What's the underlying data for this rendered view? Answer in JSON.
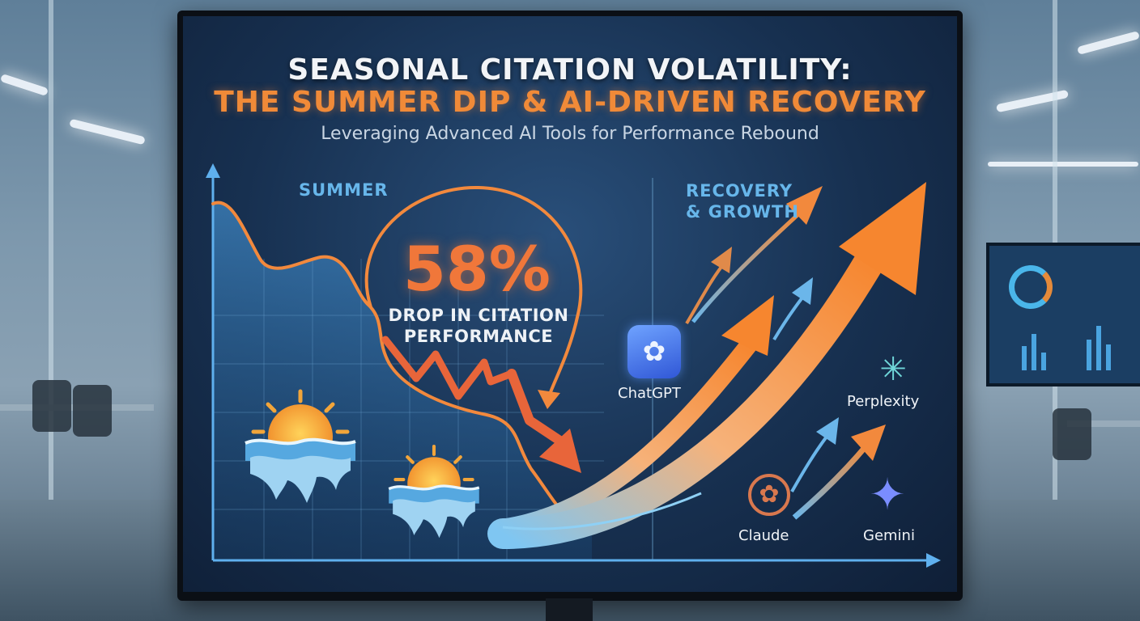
{
  "slide": {
    "title_line1": "SEASONAL CITATION VOLATILITY:",
    "title_line2": "THE SUMMER DIP & AI-DRIVEN RECOVERY",
    "subtitle": "Leveraging Advanced AI Tools for Performance Rebound",
    "label_summer": "SUMMER",
    "label_recovery_line1": "RECOVERY",
    "label_recovery_line2": "& GROWTH",
    "stat_value": "58%",
    "stat_line1": "DROP IN CITATION",
    "stat_line2": "PERFORMANCE"
  },
  "tools": {
    "chatgpt": "ChatGPT",
    "perplexity": "Perplexity",
    "claude": "Claude",
    "gemini": "Gemini"
  },
  "icons": {
    "sun": "sun-icon",
    "chatgpt": "chatgpt-logo-icon",
    "perplexity": "perplexity-logo-icon",
    "claude": "claude-logo-icon",
    "gemini": "gemini-star-icon"
  },
  "colors": {
    "title_white": "#f2f4f7",
    "title_orange": "#f08a38",
    "accent_blue": "#67b6ea",
    "stat_orange": "#f0773a",
    "screen_bg": "#173050"
  }
}
